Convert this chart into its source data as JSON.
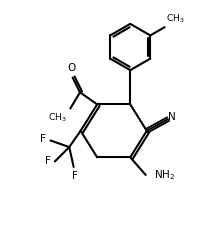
{
  "bg_color": "#ffffff",
  "line_color": "#000000",
  "line_width": 1.5,
  "figsize": [
    2.23,
    2.44
  ],
  "dpi": 100,
  "xlim": [
    0,
    10
  ],
  "ylim": [
    0,
    11
  ]
}
